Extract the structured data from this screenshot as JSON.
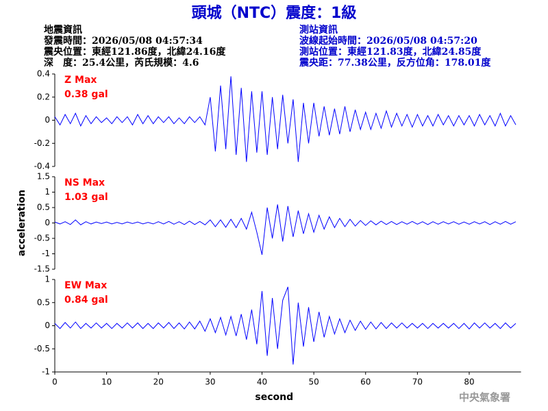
{
  "header": {
    "title": "頭城（NTC）震度：1級",
    "left_info": [
      "地震資訊",
      "發震時間：2026/05/08 04:57:34",
      "震央位置：東經121.86度，北緯24.16度",
      "深　度：25.4公里，芮氏規模：4.6"
    ],
    "right_info": [
      "測站資訊",
      "波線起始時間：2026/05/08 04:57:20",
      "測站位置：東經121.83度，北緯24.85度",
      "震央距：77.38公里，反方位角：178.01度"
    ],
    "credit": "中央氣象署"
  },
  "chart_data": [
    {
      "type": "line",
      "label": "Z Max",
      "annotation": "0.38 gal",
      "color": "#0000ff",
      "label_color": "#ff0000",
      "xlim": [
        0,
        90
      ],
      "ylim": [
        -0.4,
        0.4
      ],
      "yticks": [
        -0.4,
        -0.2,
        0,
        0.2,
        0.4
      ],
      "x": [
        0,
        1,
        2,
        3,
        4,
        5,
        6,
        7,
        8,
        9,
        10,
        11,
        12,
        13,
        14,
        15,
        16,
        17,
        18,
        19,
        20,
        21,
        22,
        23,
        24,
        25,
        26,
        27,
        28,
        29,
        30,
        31,
        32,
        33,
        34,
        35,
        36,
        37,
        38,
        39,
        40,
        41,
        42,
        43,
        44,
        45,
        46,
        47,
        48,
        49,
        50,
        51,
        52,
        53,
        54,
        55,
        56,
        57,
        58,
        59,
        60,
        61,
        62,
        63,
        64,
        65,
        66,
        67,
        68,
        69,
        70,
        71,
        72,
        73,
        74,
        75,
        76,
        77,
        78,
        79,
        80,
        81,
        82,
        83,
        84,
        85,
        86,
        87,
        88,
        89
      ],
      "values": [
        0.03,
        -0.04,
        0.05,
        -0.03,
        0.06,
        -0.05,
        0.04,
        -0.03,
        0.03,
        -0.02,
        0.02,
        -0.03,
        0.03,
        -0.02,
        0.03,
        -0.04,
        0.05,
        -0.03,
        0.04,
        -0.03,
        0.03,
        -0.02,
        0.03,
        -0.03,
        0.02,
        -0.03,
        0.03,
        -0.02,
        0.03,
        -0.04,
        0.2,
        -0.27,
        0.3,
        -0.25,
        0.38,
        -0.3,
        0.28,
        -0.36,
        0.25,
        -0.28,
        0.25,
        -0.3,
        0.2,
        -0.25,
        0.22,
        -0.2,
        0.18,
        -0.36,
        0.15,
        -0.2,
        0.15,
        -0.14,
        0.12,
        -0.13,
        0.1,
        -0.12,
        0.12,
        -0.1,
        0.09,
        -0.08,
        0.07,
        -0.08,
        0.06,
        -0.07,
        0.08,
        -0.06,
        0.06,
        -0.05,
        0.05,
        -0.06,
        0.05,
        -0.05,
        0.04,
        -0.05,
        0.05,
        -0.04,
        0.04,
        -0.05,
        0.04,
        -0.04,
        0.04,
        -0.05,
        0.05,
        -0.04,
        0.04,
        -0.05,
        0.06,
        -0.05,
        0.04,
        -0.04
      ]
    },
    {
      "type": "line",
      "label": "NS Max",
      "annotation": "1.03 gal",
      "color": "#0000ff",
      "label_color": "#ff0000",
      "ylabel": "acceleration",
      "xlim": [
        0,
        90
      ],
      "ylim": [
        -1.5,
        1.5
      ],
      "yticks": [
        -1.5,
        -1,
        -0.5,
        0,
        0.5,
        1,
        1.5
      ],
      "x": [
        0,
        1,
        2,
        3,
        4,
        5,
        6,
        7,
        8,
        9,
        10,
        11,
        12,
        13,
        14,
        15,
        16,
        17,
        18,
        19,
        20,
        21,
        22,
        23,
        24,
        25,
        26,
        27,
        28,
        29,
        30,
        31,
        32,
        33,
        34,
        35,
        36,
        37,
        38,
        39,
        40,
        41,
        42,
        43,
        44,
        45,
        46,
        47,
        48,
        49,
        50,
        51,
        52,
        53,
        54,
        55,
        56,
        57,
        58,
        59,
        60,
        61,
        62,
        63,
        64,
        65,
        66,
        67,
        68,
        69,
        70,
        71,
        72,
        73,
        74,
        75,
        76,
        77,
        78,
        79,
        80,
        81,
        82,
        83,
        84,
        85,
        86,
        87,
        88,
        89
      ],
      "values": [
        0.03,
        -0.03,
        0.04,
        -0.05,
        0.1,
        -0.06,
        0.04,
        -0.03,
        0.03,
        -0.02,
        0.03,
        -0.03,
        0.02,
        -0.03,
        0.03,
        -0.02,
        0.03,
        -0.03,
        0.02,
        -0.03,
        0.04,
        -0.03,
        0.05,
        -0.04,
        0.04,
        -0.05,
        0.06,
        -0.05,
        0.05,
        -0.06,
        0.1,
        -0.12,
        0.1,
        -0.14,
        0.12,
        -0.15,
        0.15,
        -0.2,
        0.35,
        -0.3,
        -1.03,
        0.5,
        -0.5,
        0.6,
        -0.6,
        0.55,
        -0.45,
        0.4,
        -0.35,
        0.3,
        -0.3,
        0.25,
        -0.2,
        0.2,
        -0.15,
        0.15,
        -0.12,
        0.12,
        -0.1,
        0.08,
        -0.08,
        0.07,
        -0.06,
        0.06,
        -0.05,
        0.05,
        -0.05,
        0.04,
        -0.04,
        0.05,
        -0.04,
        0.04,
        -0.05,
        0.04,
        -0.04,
        0.04,
        -0.03,
        0.04,
        -0.04,
        0.03,
        -0.04,
        0.04,
        -0.03,
        0.04,
        -0.05,
        0.04,
        -0.04,
        0.05,
        -0.04,
        0.04
      ]
    },
    {
      "type": "line",
      "label": "EW Max",
      "annotation": "0.84 gal",
      "color": "#0000ff",
      "label_color": "#ff0000",
      "xlabel": "second",
      "xlim": [
        0,
        90
      ],
      "xticks": [
        0,
        10,
        20,
        30,
        40,
        50,
        60,
        70,
        80
      ],
      "ylim": [
        -1,
        1
      ],
      "yticks": [
        -1,
        -0.5,
        0,
        0.5,
        1
      ],
      "x": [
        0,
        1,
        2,
        3,
        4,
        5,
        6,
        7,
        8,
        9,
        10,
        11,
        12,
        13,
        14,
        15,
        16,
        17,
        18,
        19,
        20,
        21,
        22,
        23,
        24,
        25,
        26,
        27,
        28,
        29,
        30,
        31,
        32,
        33,
        34,
        35,
        36,
        37,
        38,
        39,
        40,
        41,
        42,
        43,
        44,
        45,
        46,
        47,
        48,
        49,
        50,
        51,
        52,
        53,
        54,
        55,
        56,
        57,
        58,
        59,
        60,
        61,
        62,
        63,
        64,
        65,
        66,
        67,
        68,
        69,
        70,
        71,
        72,
        73,
        74,
        75,
        76,
        77,
        78,
        79,
        80,
        81,
        82,
        83,
        84,
        85,
        86,
        87,
        88,
        89
      ],
      "values": [
        0.05,
        -0.06,
        0.07,
        -0.05,
        0.08,
        -0.06,
        0.05,
        -0.05,
        0.06,
        -0.05,
        0.05,
        -0.06,
        0.05,
        -0.05,
        0.06,
        -0.05,
        0.06,
        -0.06,
        0.05,
        -0.06,
        0.06,
        -0.05,
        0.07,
        -0.06,
        0.06,
        -0.07,
        0.08,
        -0.07,
        0.1,
        -0.12,
        0.15,
        -0.15,
        0.18,
        -0.2,
        0.2,
        -0.22,
        0.25,
        -0.3,
        0.35,
        -0.4,
        0.75,
        -0.65,
        0.6,
        -0.5,
        0.55,
        0.84,
        -0.84,
        0.5,
        -0.45,
        0.4,
        -0.35,
        0.3,
        -0.25,
        0.2,
        -0.18,
        0.15,
        -0.15,
        0.12,
        -0.1,
        0.1,
        -0.08,
        0.08,
        -0.07,
        0.07,
        -0.06,
        0.06,
        -0.05,
        0.06,
        -0.05,
        0.05,
        -0.05,
        0.05,
        -0.06,
        0.05,
        -0.05,
        0.05,
        -0.05,
        0.05,
        -0.06,
        0.05,
        -0.07,
        0.06,
        -0.05,
        0.06,
        -0.05,
        0.05,
        -0.06,
        0.06,
        -0.05,
        0.05
      ]
    }
  ]
}
